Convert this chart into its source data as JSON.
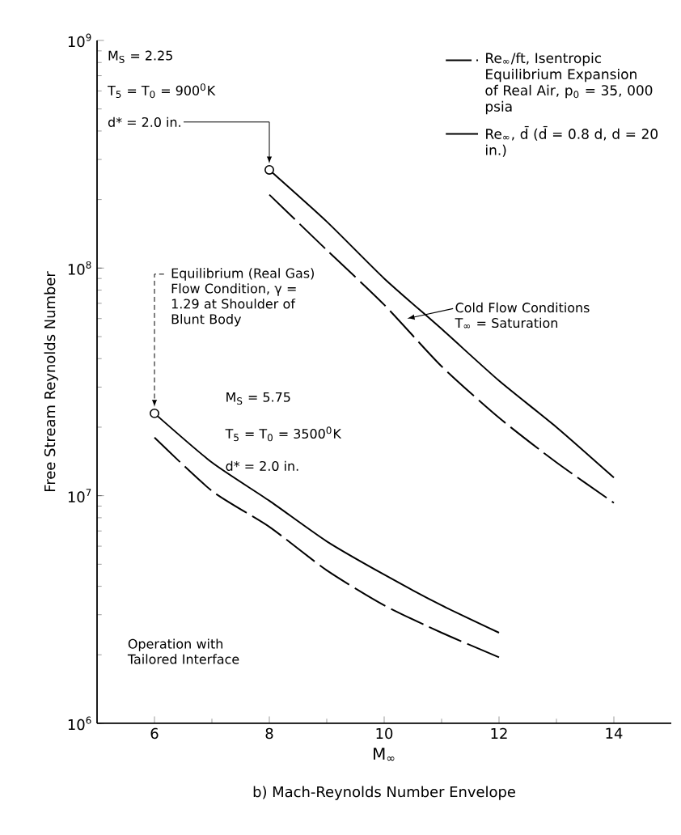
{
  "chart_data": {
    "type": "line",
    "title": "b) Mach-Reynolds Number Envelope",
    "xlabel": "M$_{∞}$",
    "ylabel": "Free Stream Reynolds Number",
    "log": "y",
    "xlim": [
      5,
      15
    ],
    "ylim": [
      1000000,
      1000000000
    ],
    "xticks": [
      6,
      8,
      10,
      12,
      14
    ],
    "yticks": [
      {
        "value": 1000000,
        "label": "10$^{6}$"
      },
      {
        "value": 10000000,
        "label": "10$^{7}$"
      },
      {
        "value": 100000000,
        "label": "10$^{8}$"
      },
      {
        "value": 1000000000,
        "label": "10$^{9}$"
      }
    ],
    "legend": "top right",
    "series": [
      {
        "name": "Re$_{∞}$/ft, Isentropic Equilibrium Expansion of Real Air, p$_{0}$ = 35, 000 psia",
        "color": "#000000",
        "line_style": "dashed",
        "x": [
          8,
          9,
          10,
          11,
          12,
          13,
          14
        ],
        "values": [
          210000000,
          120000000,
          69000000,
          37000000,
          22000000,
          14000000,
          9300000
        ]
      },
      {
        "name": "Re$_{∞}$, d̄ (d̄ = 0.8 d, d = 20 in.)",
        "color": "#000000",
        "line_style": "solid",
        "x": [
          8,
          9,
          10,
          11,
          12,
          13,
          14
        ],
        "values": [
          270000000,
          160000000,
          90000000,
          54000000,
          32000000,
          20000000,
          12000000
        ]
      },
      {
        "color": "#000000",
        "line_style": "dashed",
        "x": [
          6,
          7,
          8,
          9,
          10,
          11,
          12
        ],
        "values": [
          18000000,
          10500000,
          7300000,
          4700000,
          3300000,
          2500000,
          1950000
        ]
      },
      {
        "color": "#000000",
        "line_style": "solid",
        "x": [
          6,
          7,
          8,
          9,
          10,
          11,
          12
        ],
        "values": [
          23000000,
          14000000,
          9500000,
          6300000,
          4500000,
          3300000,
          2500000
        ]
      },
      {
        "type": "scatter",
        "color": "#000000",
        "marker": "circle",
        "x": [
          6,
          8
        ],
        "values": [
          23000000,
          270000000
        ]
      }
    ],
    "annotations": [
      "M$_{S}$ = 2.25",
      "T$_{5}$ = T$_{0}$ = 900$^{0}$K",
      {
        "text": "d* = 2.0 in.",
        "x": 8,
        "y": 270000000
      },
      {
        "text": "Equilibrium (Real Gas) Flow Condition, γ = 1.29 at Shoulder of Blunt Body",
        "x": 6,
        "y": 23000000
      },
      "M$_{S}$ = 5.75",
      "T$_{5}$ = T$_{0}$ = 3500$^{0}$K",
      "d* = 2.0 in.",
      {
        "text": "Cold Flow Conditions T$_{∞}$ = Saturation",
        "x": 10.4,
        "y": 60000000
      },
      "Operation with Tailored Interface"
    ]
  }
}
